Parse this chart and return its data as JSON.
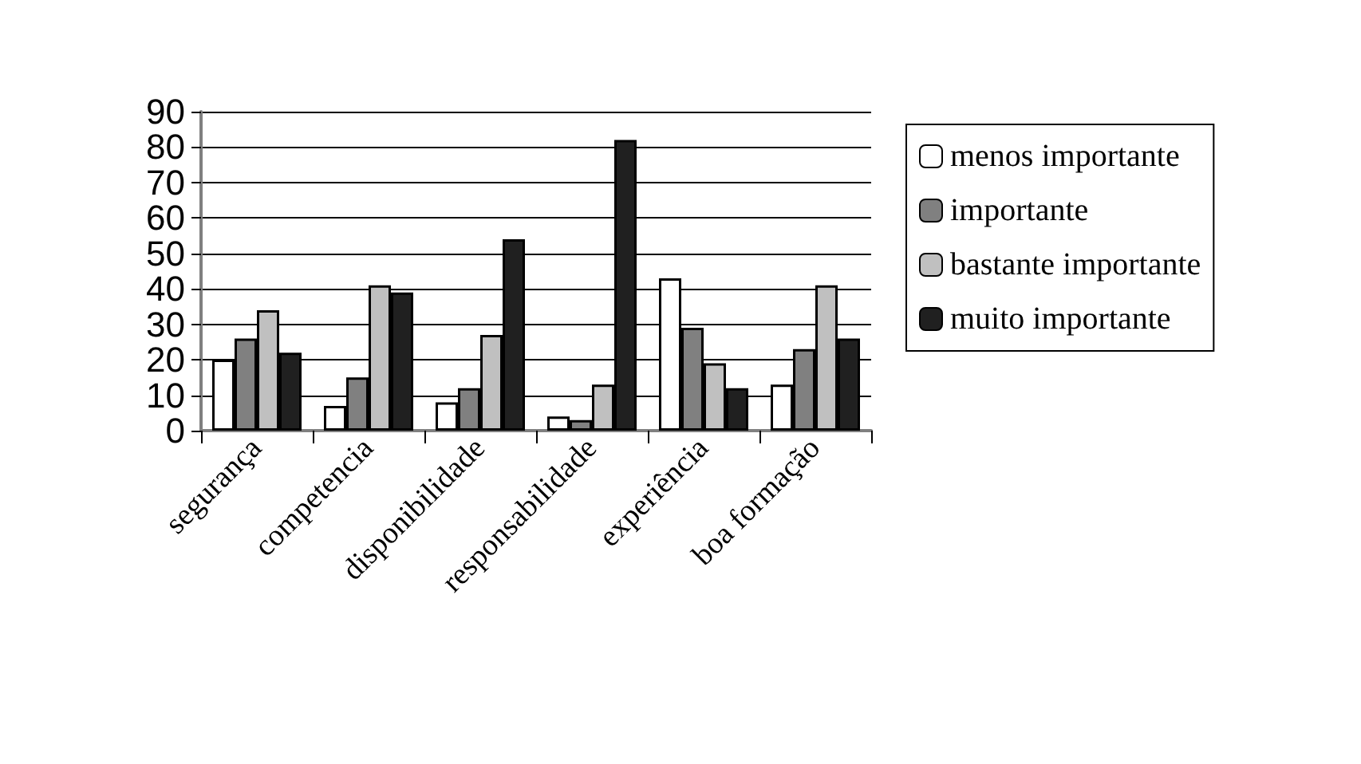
{
  "chart_data": {
    "type": "bar",
    "categories": [
      "segurança",
      "competencia",
      "disponibilidade",
      "responsabilidade",
      "experiência",
      "boa formação"
    ],
    "series": [
      {
        "name": "menos importante",
        "color": "#ffffff",
        "values": [
          20,
          7,
          8,
          4,
          43,
          13
        ]
      },
      {
        "name": "importante",
        "color": "#808080",
        "values": [
          26,
          15,
          12,
          3,
          29,
          23
        ]
      },
      {
        "name": "bastante importante",
        "color": "#c0c0c0",
        "values": [
          34,
          41,
          27,
          13,
          19,
          41
        ]
      },
      {
        "name": "muito importante",
        "color": "#202020",
        "values": [
          22,
          39,
          54,
          82,
          12,
          26
        ]
      }
    ],
    "ylim": [
      0,
      90
    ],
    "yticks": [
      0,
      10,
      20,
      30,
      40,
      50,
      60,
      70,
      80,
      90
    ],
    "grid": "y",
    "legend": "right"
  }
}
